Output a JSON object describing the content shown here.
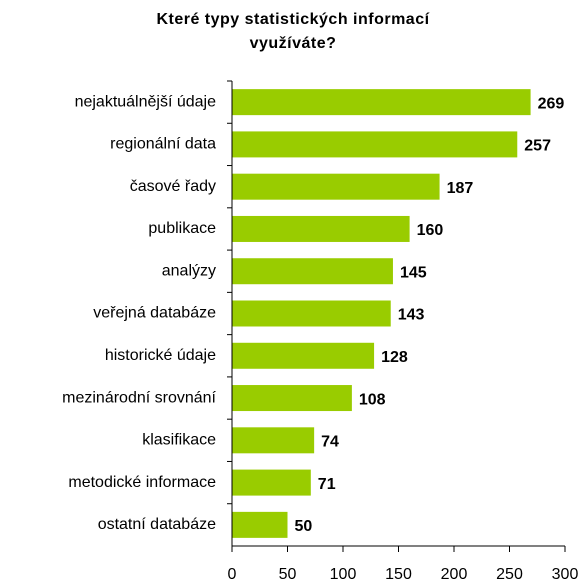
{
  "chart_data": {
    "type": "bar",
    "orientation": "horizontal",
    "title": [
      "Které typy statistických informací",
      "využíváte?"
    ],
    "categories": [
      "nejaktuálnější údaje",
      "regionální data",
      "časové řady",
      "publikace",
      "analýzy",
      "veřejná databáze",
      "historické údaje",
      "mezinárodní srovnání",
      "klasifikace",
      "metodické informace",
      "ostatní databáze"
    ],
    "values": [
      269,
      257,
      187,
      160,
      145,
      143,
      128,
      108,
      74,
      71,
      50
    ],
    "color": "#99cc00",
    "xlim": [
      0,
      300
    ],
    "xticks": [
      0,
      50,
      100,
      150,
      200,
      250,
      300
    ]
  }
}
